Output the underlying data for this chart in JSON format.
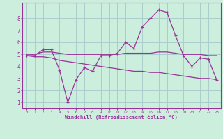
{
  "xlabel": "Windchill (Refroidissement éolien,°C)",
  "bg_color": "#cceedd",
  "grid_color": "#aacccc",
  "line_color": "#993399",
  "x_hours": [
    0,
    1,
    2,
    3,
    4,
    5,
    6,
    7,
    8,
    9,
    10,
    11,
    12,
    13,
    14,
    15,
    16,
    17,
    18,
    19,
    20,
    21,
    22,
    23
  ],
  "windchill_values": [
    4.9,
    4.9,
    5.4,
    5.4,
    3.7,
    1.0,
    2.9,
    3.9,
    3.6,
    4.9,
    4.9,
    5.1,
    6.0,
    5.5,
    7.3,
    8.0,
    8.7,
    8.5,
    6.6,
    4.9,
    4.0,
    4.7,
    4.6,
    2.9
  ],
  "band_upper": [
    5.0,
    5.0,
    5.2,
    5.2,
    5.1,
    5.0,
    5.0,
    5.0,
    5.0,
    5.0,
    5.0,
    5.0,
    5.1,
    5.1,
    5.1,
    5.1,
    5.2,
    5.2,
    5.1,
    5.0,
    5.0,
    5.0,
    4.9,
    4.9
  ],
  "band_lower": [
    4.9,
    4.8,
    4.8,
    4.7,
    4.5,
    4.4,
    4.3,
    4.2,
    4.1,
    4.0,
    3.9,
    3.8,
    3.7,
    3.6,
    3.6,
    3.5,
    3.5,
    3.4,
    3.3,
    3.2,
    3.1,
    3.0,
    3.0,
    2.9
  ],
  "ylim": [
    0.5,
    9.3
  ],
  "xlim": [
    -0.5,
    23.5
  ],
  "yticks": [
    1,
    2,
    3,
    4,
    5,
    6,
    7,
    8
  ]
}
